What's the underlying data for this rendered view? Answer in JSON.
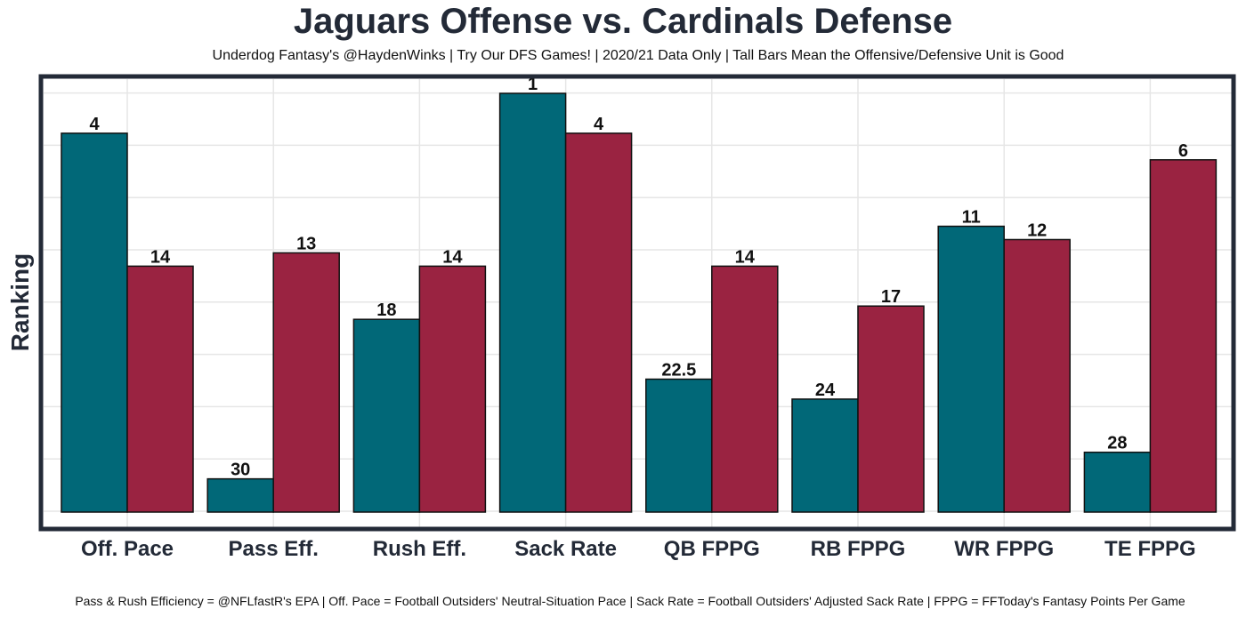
{
  "title": "Jaguars Offense vs. Cardinals Defense",
  "subtitle": "Underdog Fantasy's @HaydenWinks | Try Our DFS Games! | 2020/21 Data Only | Tall Bars Mean the Offensive/Defensive Unit is Good",
  "caption": "Pass & Rush Efficiency = @NFLfastR's EPA | Off. Pace = Football Outsiders' Neutral-Situation Pace | Sack Rate = Football Outsiders' Adjusted Sack Rate | FPPG = FFToday's Fantasy Points Per Game",
  "colors": {
    "offense": "#016878",
    "defense": "#9a2341",
    "frame": "#232a37",
    "grid": "#e6e6e6"
  },
  "chart_data": {
    "type": "bar",
    "title": "Jaguars Offense vs. Cardinals Defense",
    "ylabel": "Ranking",
    "xlabel": "",
    "y_reversed_rank": true,
    "ylim": [
      32.5,
      1
    ],
    "grid": true,
    "categories": [
      "Off. Pace",
      "Pass Eff.",
      "Rush Eff.",
      "Sack Rate",
      "QB FPPG",
      "RB FPPG",
      "WR FPPG",
      "TE FPPG"
    ],
    "series": [
      {
        "key": "offense",
        "values": [
          4,
          30,
          18,
          1,
          22.5,
          24,
          11,
          28
        ],
        "labels": [
          "4",
          "30",
          "18",
          "1",
          "22.5",
          "24",
          "11",
          "28"
        ]
      },
      {
        "key": "defense",
        "values": [
          14,
          13,
          14,
          4,
          14,
          17,
          12,
          6
        ],
        "labels": [
          "14",
          "13",
          "14",
          "4",
          "14",
          "17",
          "12",
          "6"
        ]
      }
    ]
  }
}
